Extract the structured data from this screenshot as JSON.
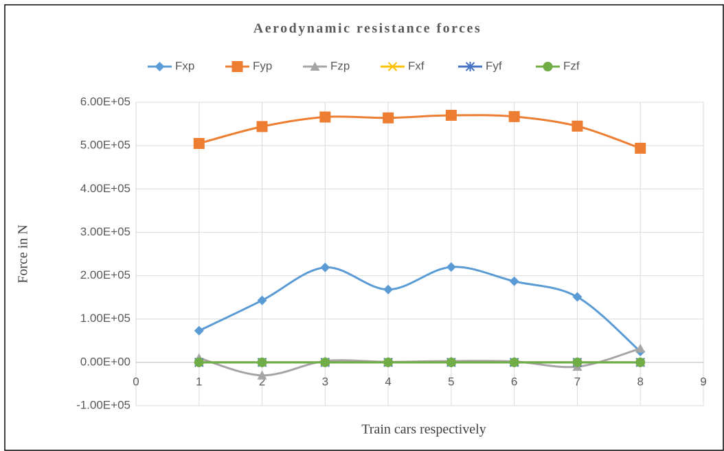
{
  "chart_data": {
    "type": "line",
    "title": "Aerodynamic resistance forces",
    "x_label": "Train cars respectively",
    "y_label": "Force in N",
    "x": [
      1,
      2,
      3,
      4,
      5,
      6,
      7,
      8
    ],
    "series": [
      {
        "name": "Fxp",
        "color": "#5b9bd5",
        "marker": "diamond",
        "values": [
          73000,
          143000,
          219000,
          168000,
          220000,
          187000,
          151000,
          25000
        ]
      },
      {
        "name": "Fyp",
        "color": "#ed7d31",
        "marker": "square",
        "values": [
          505000,
          544000,
          566000,
          564000,
          570000,
          567000,
          545000,
          494000
        ]
      },
      {
        "name": "Fzp",
        "color": "#a5a5a5",
        "marker": "triangle",
        "values": [
          10000,
          -30000,
          3000,
          1000,
          3000,
          2000,
          -10000,
          32000
        ]
      },
      {
        "name": "Fxf",
        "color": "#ffc000",
        "marker": "x",
        "values": [
          0,
          0,
          0,
          0,
          0,
          0,
          0,
          0
        ]
      },
      {
        "name": "Fyf",
        "color": "#4472c4",
        "marker": "star",
        "values": [
          0,
          0,
          0,
          0,
          0,
          0,
          0,
          0
        ]
      },
      {
        "name": "Fzf",
        "color": "#70ad47",
        "marker": "circle",
        "values": [
          0,
          0,
          0,
          0,
          0,
          0,
          0,
          0
        ]
      }
    ],
    "xlim": [
      0,
      9
    ],
    "xticks": [
      0,
      1,
      2,
      3,
      4,
      5,
      6,
      7,
      8,
      9
    ],
    "ylim": [
      -100000,
      600000
    ],
    "yticks": [
      {
        "value": -100000,
        "label": "-1.00E+05"
      },
      {
        "value": 0,
        "label": "0.00E+00"
      },
      {
        "value": 100000,
        "label": "1.00E+05"
      },
      {
        "value": 200000,
        "label": "2.00E+05"
      },
      {
        "value": 300000,
        "label": "3.00E+05"
      },
      {
        "value": 400000,
        "label": "4.00E+05"
      },
      {
        "value": 500000,
        "label": "5.00E+05"
      },
      {
        "value": 600000,
        "label": "6.00E+05"
      }
    ],
    "grid": true,
    "smooth": true,
    "legend": "top"
  }
}
